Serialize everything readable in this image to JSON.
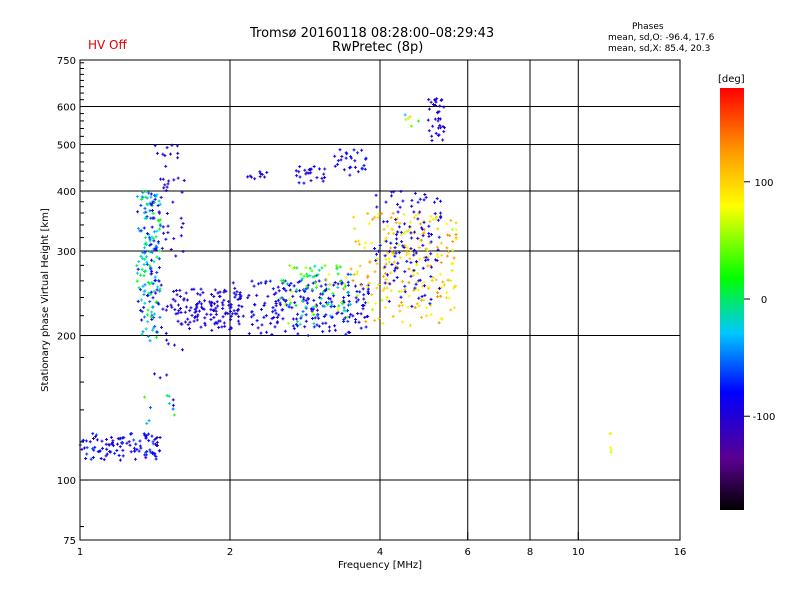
{
  "header": {
    "title_line1": "Tromsø 20160118 08:28:00–08:29:43",
    "title_line2": "RwPretec (8p)",
    "hv_status": "HV Off",
    "phase_heading": "Phases",
    "phase_o": "mean, sd,O: -96.4, 17.6",
    "phase_x": "mean, sd,X:  85.4, 20.3"
  },
  "colors": {
    "hv_status": "#e00000",
    "grid": "#000000"
  },
  "chart_data": {
    "type": "scatter",
    "xlabel": "Frequency [MHz]",
    "ylabel": "Stationary phase Virtual Height [km]",
    "xscale": "log",
    "yscale": "log",
    "xlim": [
      1,
      16
    ],
    "ylim": [
      75,
      750
    ],
    "x_ticks": [
      1,
      2,
      4,
      6,
      8,
      10,
      16
    ],
    "y_ticks": [
      75,
      100,
      200,
      300,
      400,
      500,
      600,
      750
    ],
    "x_major_grid": [
      2,
      4,
      6,
      8,
      10
    ],
    "y_major_grid": [
      100,
      200,
      300,
      400,
      500,
      600
    ],
    "grid": true,
    "colorbar": {
      "label": "[deg]",
      "min": -180,
      "max": 180,
      "ticks": [
        100,
        0,
        -100
      ]
    },
    "clusters": [
      {
        "f": [
          1.0,
          1.45
        ],
        "h": [
          110,
          125
        ],
        "phase": [
          -110,
          -60
        ],
        "n": 110
      },
      {
        "f": [
          1.3,
          1.45
        ],
        "h": [
          195,
          400
        ],
        "phase": [
          -100,
          20
        ],
        "n": 170
      },
      {
        "f": [
          1.38,
          1.62
        ],
        "h": [
          160,
          500
        ],
        "phase": [
          -115,
          -90
        ],
        "n": 80
      },
      {
        "f": [
          1.55,
          2.1
        ],
        "h": [
          205,
          250
        ],
        "phase": [
          -110,
          -85
        ],
        "n": 120
      },
      {
        "f": [
          2.0,
          3.8
        ],
        "h": [
          200,
          260
        ],
        "phase": [
          -110,
          -70
        ],
        "n": 220
      },
      {
        "f": [
          2.5,
          3.5
        ],
        "h": [
          210,
          280
        ],
        "phase": [
          -80,
          80
        ],
        "n": 100
      },
      {
        "f": [
          3.5,
          5.7
        ],
        "h": [
          210,
          360
        ],
        "phase": [
          60,
          130
        ],
        "n": 230
      },
      {
        "f": [
          3.9,
          5.3
        ],
        "h": [
          230,
          400
        ],
        "phase": [
          -110,
          -70
        ],
        "n": 120
      },
      {
        "f": [
          1.3,
          1.55
        ],
        "h": [
          130,
          150
        ],
        "phase": [
          -100,
          40
        ],
        "n": 12
      },
      {
        "f": [
          2.1,
          2.4
        ],
        "h": [
          420,
          445
        ],
        "phase": [
          -110,
          -90
        ],
        "n": 10
      },
      {
        "f": [
          2.7,
          3.1
        ],
        "h": [
          415,
          450
        ],
        "phase": [
          -110,
          -70
        ],
        "n": 25
      },
      {
        "f": [
          3.2,
          3.8
        ],
        "h": [
          430,
          490
        ],
        "phase": [
          -110,
          -70
        ],
        "n": 28
      },
      {
        "f": [
          5.0,
          5.4
        ],
        "h": [
          505,
          625
        ],
        "phase": [
          -110,
          -90
        ],
        "n": 35
      },
      {
        "f": [
          4.4,
          4.9
        ],
        "h": [
          540,
          590
        ],
        "phase": [
          -100,
          100
        ],
        "n": 6
      },
      {
        "f": [
          11.5,
          11.8
        ],
        "h": [
          110,
          125
        ],
        "phase": [
          60,
          90
        ],
        "n": 5
      }
    ]
  }
}
